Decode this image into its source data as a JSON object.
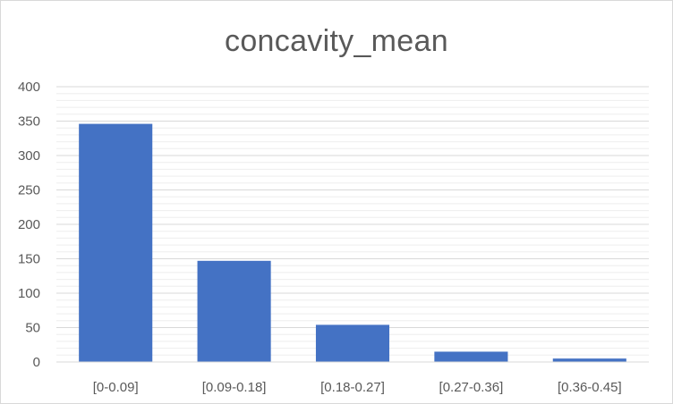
{
  "chart_data": {
    "type": "bar",
    "title": "concavity_mean",
    "categories": [
      "[0-0.09]",
      "[0.09-0.18]",
      "[0.18-0.27]",
      "[0.27-0.36]",
      "[0.36-0.45]"
    ],
    "values": [
      346,
      147,
      54,
      15,
      5
    ],
    "ylim": [
      0,
      400
    ],
    "yticks": [
      0,
      50,
      100,
      150,
      200,
      250,
      300,
      350,
      400
    ],
    "xlabel": "",
    "ylabel": "",
    "grid": true,
    "legend": "none",
    "bar_color": "#4472c4",
    "grid_color": "#d9d9d9"
  }
}
